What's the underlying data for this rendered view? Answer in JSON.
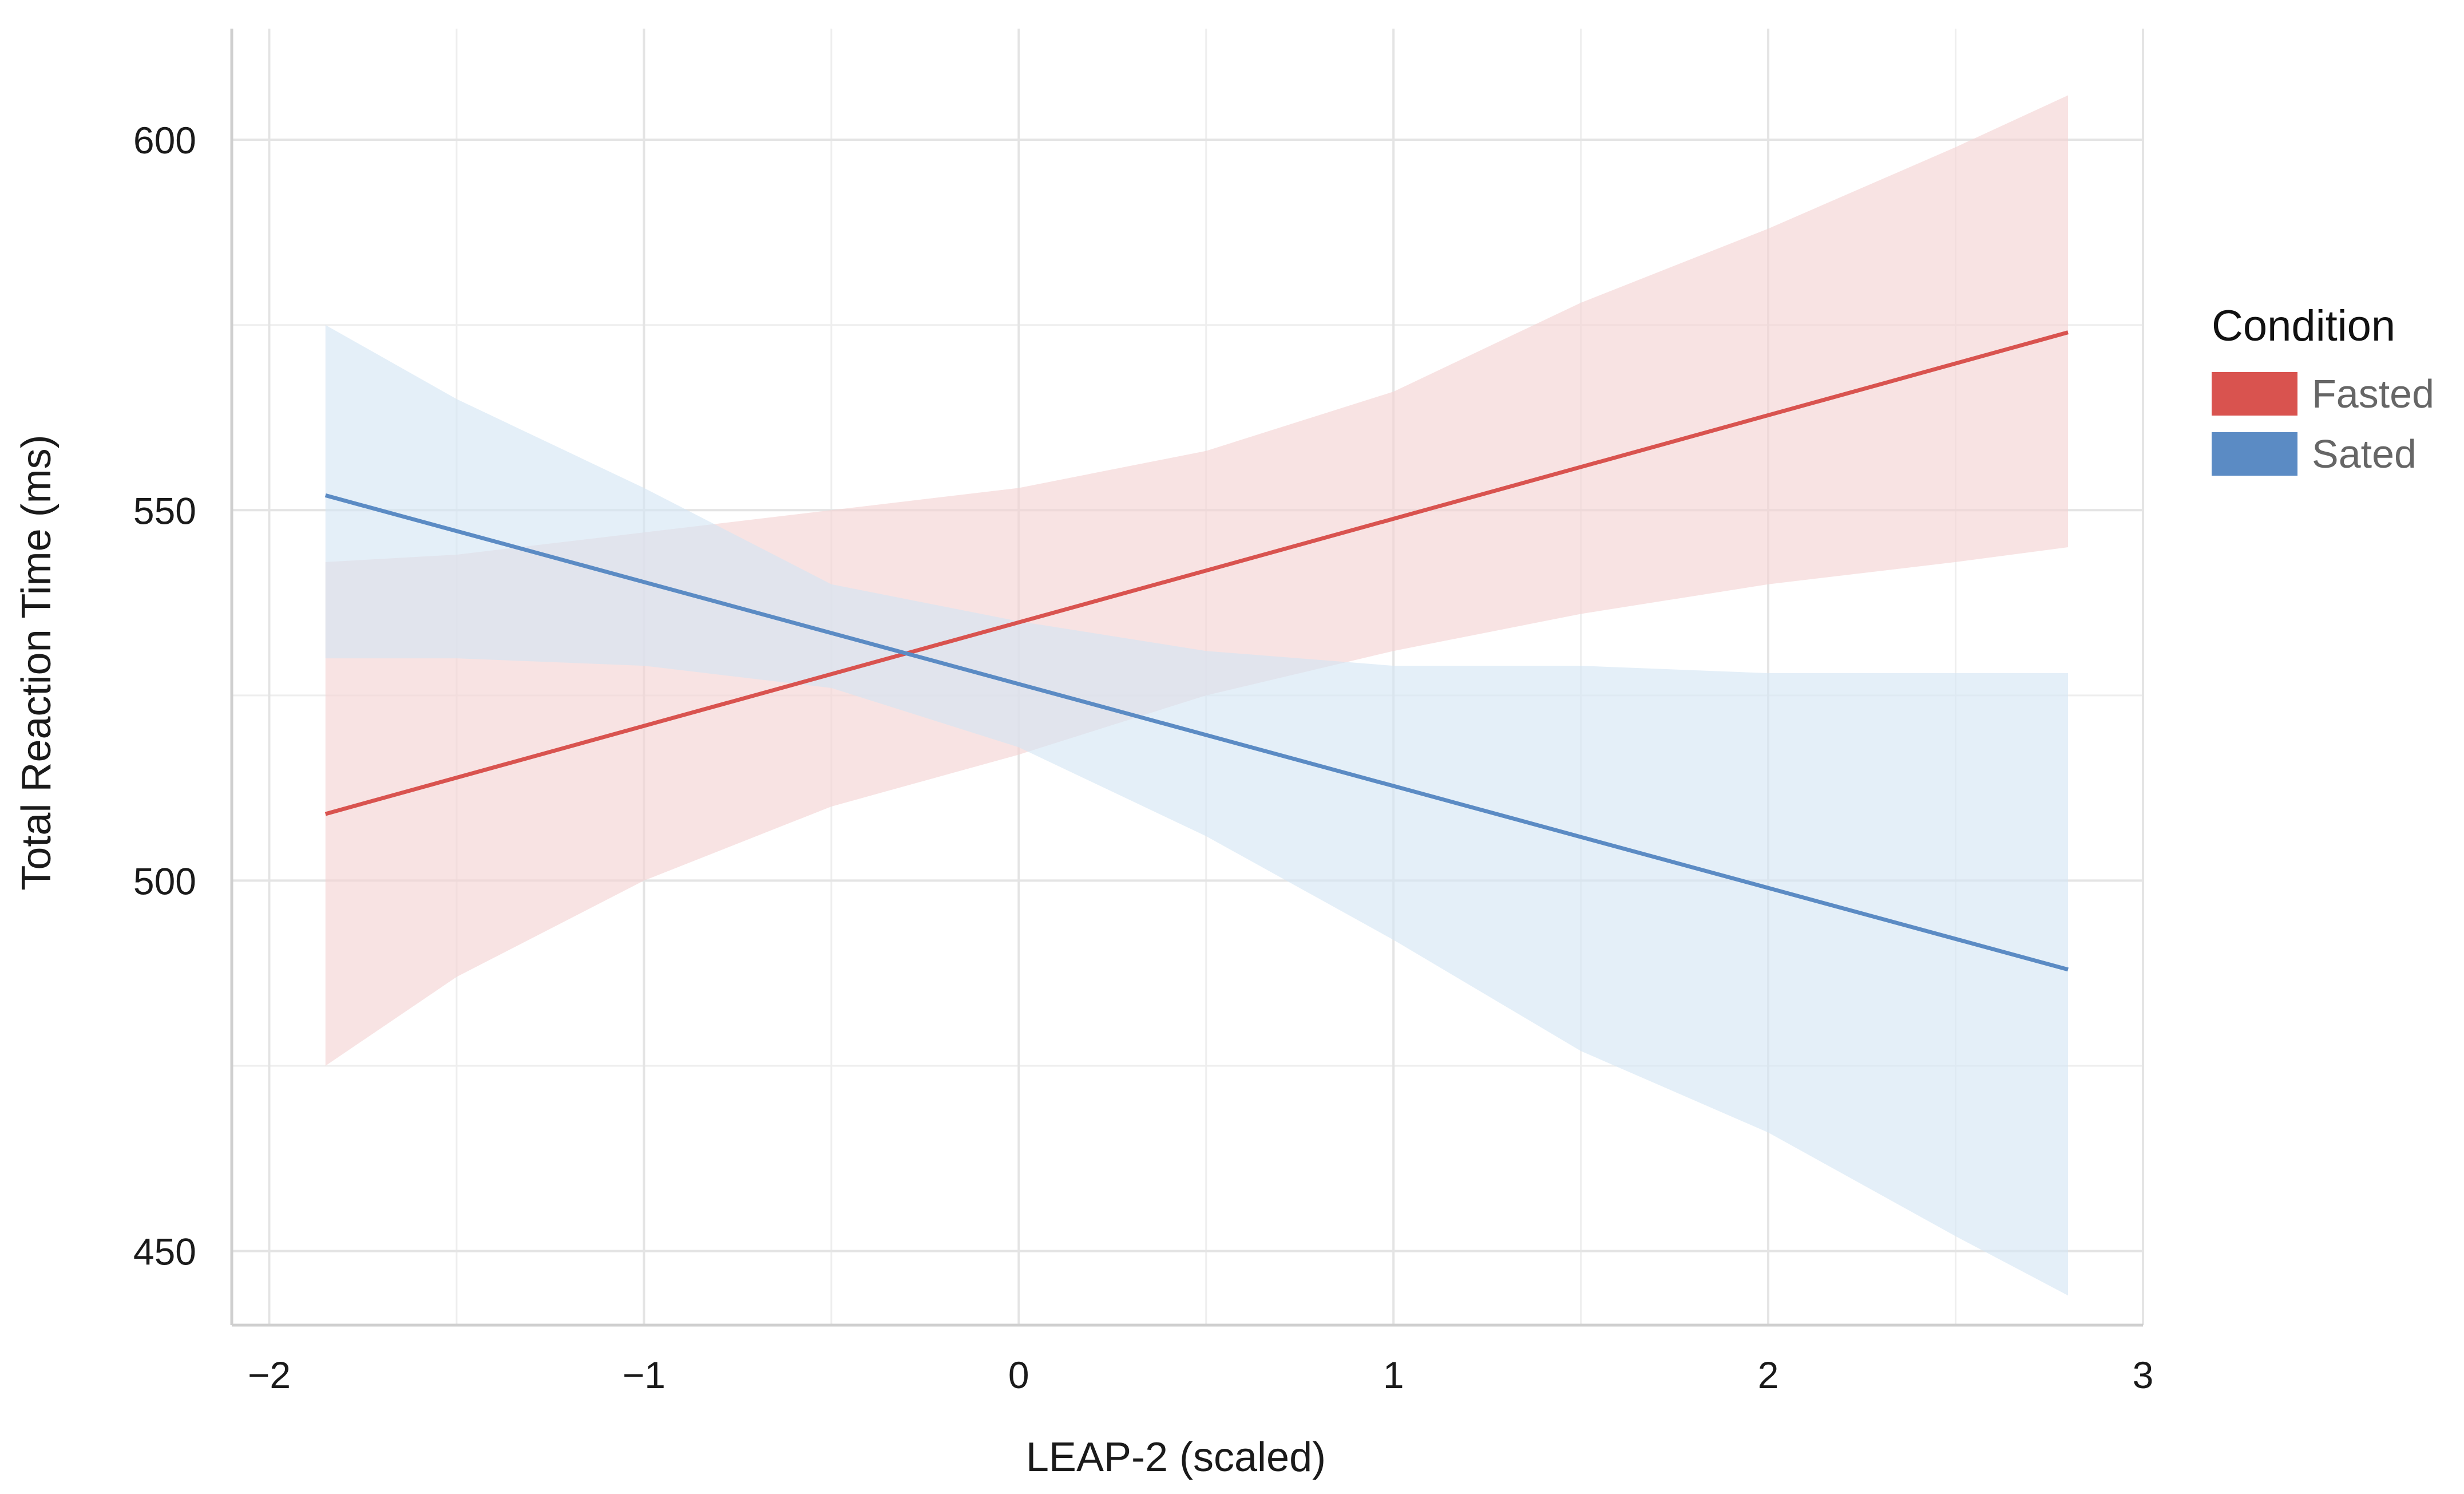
{
  "chart_data": {
    "type": "line",
    "title": "",
    "xlabel": "LEAP-2 (scaled)",
    "ylabel": "Total Reaction Time (ms)",
    "xlim": [
      -2.1,
      3.0
    ],
    "ylim": [
      440,
      615
    ],
    "xticks": [
      -2,
      -1,
      0,
      1,
      2,
      3
    ],
    "xtick_labels": [
      "−2",
      "−1",
      "0",
      "1",
      "2",
      "3"
    ],
    "yticks": [
      450,
      500,
      550,
      600
    ],
    "ytick_labels": [
      "450",
      "500",
      "550",
      "600"
    ],
    "minor_xgrid": [
      -1.5,
      -0.5,
      0.5,
      1.5,
      2.5
    ],
    "minor_ygrid": [
      475,
      525,
      575
    ],
    "grid": true,
    "legend_title": "Condition",
    "legend_position": "right",
    "series": [
      {
        "name": "Fasted",
        "color": "#d9534f",
        "band_color": "#f3d2d2",
        "x": [
          -1.85,
          2.8
        ],
        "y": [
          509,
          574
        ],
        "band_x": [
          -1.85,
          -1.5,
          -1.0,
          -0.5,
          0.0,
          0.5,
          1.0,
          1.5,
          2.0,
          2.5,
          2.8
        ],
        "band_lower": [
          475,
          487,
          500,
          510,
          517,
          525,
          531,
          536,
          540,
          543,
          545
        ],
        "band_upper": [
          543,
          544,
          547,
          550,
          553,
          558,
          566,
          578,
          588,
          599,
          606
        ]
      },
      {
        "name": "Sated",
        "color": "#5b8bc4",
        "band_color": "#d4e5f3",
        "x": [
          -1.85,
          2.8
        ],
        "y": [
          552,
          488
        ],
        "band_x": [
          -1.85,
          -1.5,
          -1.0,
          -0.5,
          0.0,
          0.5,
          1.0,
          1.5,
          2.0,
          2.5,
          2.8
        ],
        "band_lower": [
          530,
          530,
          529,
          526,
          518,
          506,
          492,
          477,
          466,
          452,
          444
        ],
        "band_upper": [
          575,
          565,
          553,
          540,
          535,
          531,
          529,
          529,
          528,
          528,
          528
        ]
      }
    ]
  }
}
